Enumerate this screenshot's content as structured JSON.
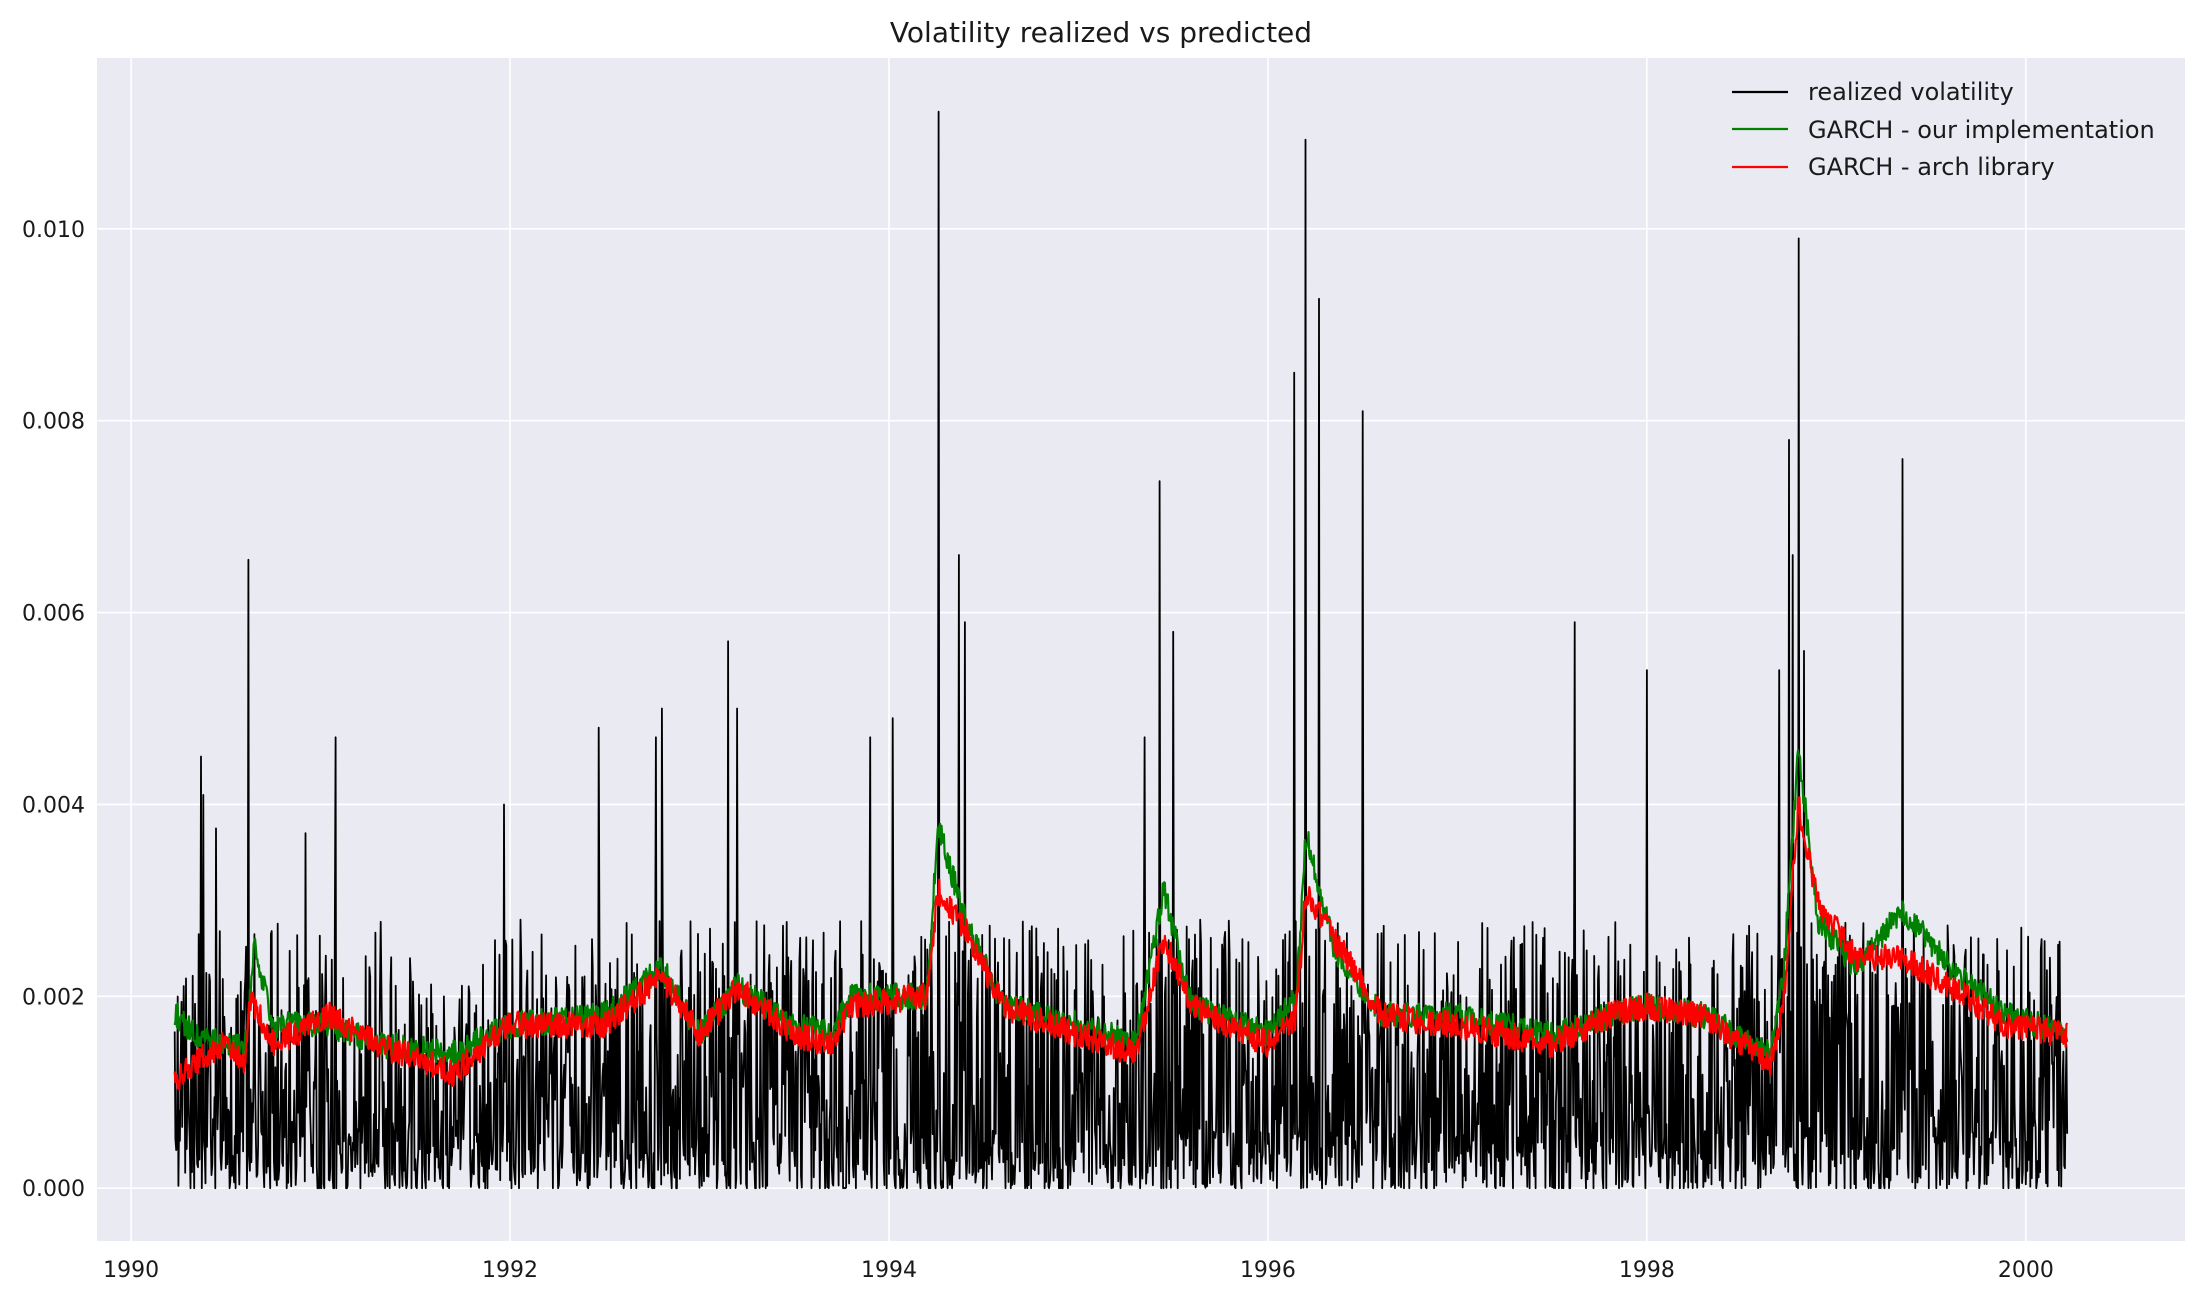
{
  "chart_data": {
    "type": "line",
    "title": "Volatility realized vs predicted",
    "xlabel": "",
    "ylabel": "",
    "xlim": [
      1989.82,
      2000.84
    ],
    "ylim": [
      -0.00055,
      0.01178
    ],
    "x_ticks": [
      "1990",
      "1992",
      "1994",
      "1996",
      "1998",
      "2000"
    ],
    "y_ticks": [
      "0.000",
      "0.002",
      "0.004",
      "0.006",
      "0.008",
      "0.010"
    ],
    "grid": true,
    "legend_position": "top-right",
    "series": [
      {
        "name": "realized volatility",
        "color": "#000000",
        "sampling": "daily",
        "x": [
          1990.23,
          2000.22
        ],
        "baseline": 0.0012,
        "noise_range": [
          0.0,
          0.0028
        ],
        "spikes": [
          [
            1990.37,
            0.0045
          ],
          [
            1990.38,
            0.0041
          ],
          [
            1990.45,
            0.00375
          ],
          [
            1990.62,
            0.00655
          ],
          [
            1990.92,
            0.0037
          ],
          [
            1991.08,
            0.0047
          ],
          [
            1991.97,
            0.004
          ],
          [
            1992.47,
            0.0048
          ],
          [
            1992.77,
            0.0047
          ],
          [
            1992.8,
            0.005
          ],
          [
            1993.15,
            0.0057
          ],
          [
            1993.2,
            0.005
          ],
          [
            1993.9,
            0.0047
          ],
          [
            1994.02,
            0.0049
          ],
          [
            1994.26,
            0.01122
          ],
          [
            1994.37,
            0.0066
          ],
          [
            1994.4,
            0.0059
          ],
          [
            1995.35,
            0.0047
          ],
          [
            1995.43,
            0.00737
          ],
          [
            1995.5,
            0.0058
          ],
          [
            1996.14,
            0.0085
          ],
          [
            1996.2,
            0.01093
          ],
          [
            1996.27,
            0.00927
          ],
          [
            1996.5,
            0.0081
          ],
          [
            1997.62,
            0.0059
          ],
          [
            1998.0,
            0.0054
          ],
          [
            1998.7,
            0.0054
          ],
          [
            1998.75,
            0.0078
          ],
          [
            1998.77,
            0.0066
          ],
          [
            1998.8,
            0.0099
          ],
          [
            1998.83,
            0.0056
          ],
          [
            1999.35,
            0.0076
          ]
        ]
      },
      {
        "name": "GARCH - our implementation",
        "color": "#008000",
        "sampling": "daily",
        "x": [
          1990.23,
          2000.22
        ],
        "keypoints": [
          [
            1990.23,
            0.00182
          ],
          [
            1990.35,
            0.0016
          ],
          [
            1990.6,
            0.00145
          ],
          [
            1990.65,
            0.0025
          ],
          [
            1990.75,
            0.0017
          ],
          [
            1991.05,
            0.0017
          ],
          [
            1991.3,
            0.0015
          ],
          [
            1991.7,
            0.0014
          ],
          [
            1992.0,
            0.0017
          ],
          [
            1992.5,
            0.0018
          ],
          [
            1992.8,
            0.0023
          ],
          [
            1993.0,
            0.0016
          ],
          [
            1993.2,
            0.0021
          ],
          [
            1993.5,
            0.0017
          ],
          [
            1993.7,
            0.0016
          ],
          [
            1993.8,
            0.002
          ],
          [
            1994.2,
            0.002
          ],
          [
            1994.26,
            0.0038
          ],
          [
            1994.4,
            0.0028
          ],
          [
            1994.6,
            0.0019
          ],
          [
            1995.0,
            0.0017
          ],
          [
            1995.3,
            0.0015
          ],
          [
            1995.45,
            0.0031
          ],
          [
            1995.6,
            0.0019
          ],
          [
            1996.0,
            0.0016
          ],
          [
            1996.15,
            0.002
          ],
          [
            1996.2,
            0.0037
          ],
          [
            1996.35,
            0.0025
          ],
          [
            1996.6,
            0.0018
          ],
          [
            1997.0,
            0.0018
          ],
          [
            1997.5,
            0.0016
          ],
          [
            1997.8,
            0.0018
          ],
          [
            1998.0,
            0.0019
          ],
          [
            1998.3,
            0.0018
          ],
          [
            1998.65,
            0.0014
          ],
          [
            1998.72,
            0.0022
          ],
          [
            1998.8,
            0.0046
          ],
          [
            1998.9,
            0.0028
          ],
          [
            1999.1,
            0.0023
          ],
          [
            1999.35,
            0.0029
          ],
          [
            1999.6,
            0.0023
          ],
          [
            1999.9,
            0.0018
          ],
          [
            2000.22,
            0.0016
          ]
        ]
      },
      {
        "name": "GARCH - arch library",
        "color": "#ff0000",
        "sampling": "daily",
        "x": [
          1990.23,
          2000.22
        ],
        "keypoints": [
          [
            1990.23,
            0.00113
          ],
          [
            1990.4,
            0.0014
          ],
          [
            1990.5,
            0.0015
          ],
          [
            1990.6,
            0.0013
          ],
          [
            1990.63,
            0.002
          ],
          [
            1990.75,
            0.0015
          ],
          [
            1991.05,
            0.0018
          ],
          [
            1991.3,
            0.0015
          ],
          [
            1991.7,
            0.0012
          ],
          [
            1992.0,
            0.0017
          ],
          [
            1992.5,
            0.0017
          ],
          [
            1992.8,
            0.0022
          ],
          [
            1993.0,
            0.0016
          ],
          [
            1993.2,
            0.0021
          ],
          [
            1993.5,
            0.0016
          ],
          [
            1993.7,
            0.0015
          ],
          [
            1993.8,
            0.0019
          ],
          [
            1994.2,
            0.002
          ],
          [
            1994.26,
            0.0031
          ],
          [
            1994.4,
            0.0027
          ],
          [
            1994.6,
            0.0019
          ],
          [
            1995.0,
            0.0016
          ],
          [
            1995.3,
            0.0014
          ],
          [
            1995.45,
            0.0026
          ],
          [
            1995.6,
            0.0019
          ],
          [
            1996.0,
            0.0015
          ],
          [
            1996.15,
            0.0018
          ],
          [
            1996.2,
            0.0031
          ],
          [
            1996.35,
            0.0026
          ],
          [
            1996.6,
            0.0018
          ],
          [
            1997.0,
            0.0017
          ],
          [
            1997.5,
            0.0015
          ],
          [
            1997.8,
            0.0018
          ],
          [
            1998.0,
            0.0019
          ],
          [
            1998.3,
            0.0018
          ],
          [
            1998.65,
            0.0013
          ],
          [
            1998.72,
            0.0019
          ],
          [
            1998.8,
            0.004
          ],
          [
            1998.9,
            0.003
          ],
          [
            1999.1,
            0.0024
          ],
          [
            1999.35,
            0.0024
          ],
          [
            1999.6,
            0.0021
          ],
          [
            1999.9,
            0.0017
          ],
          [
            2000.22,
            0.0016
          ]
        ]
      }
    ]
  }
}
